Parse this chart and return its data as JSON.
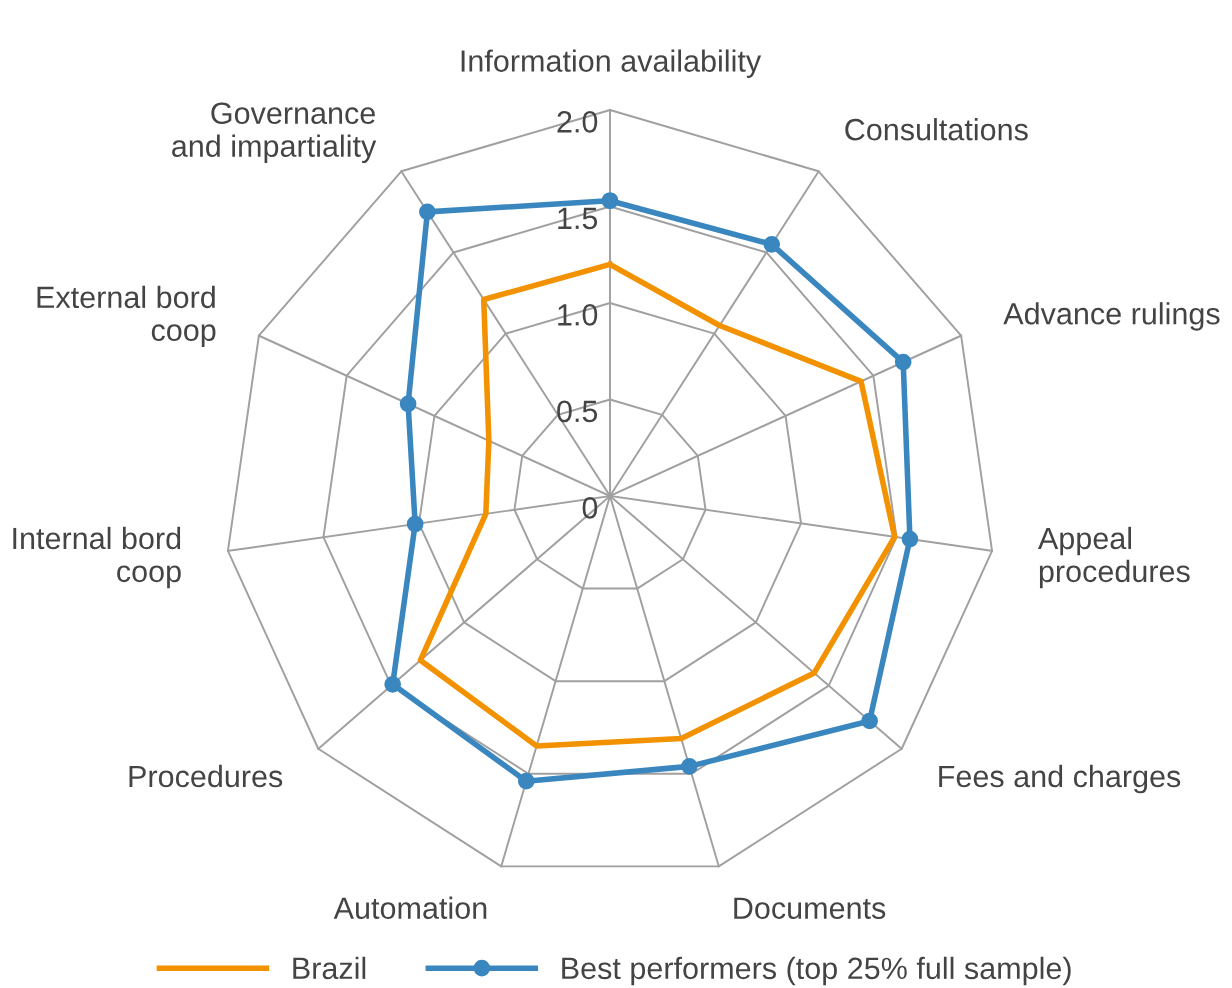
{
  "chart_data": {
    "type": "radar",
    "categories": [
      "Information availability",
      "Consultations",
      "Advance rulings",
      "Appeal\nprocedures",
      "Fees and charges",
      "Documents",
      "Automation",
      "Procedures",
      "Internal bord\ncoop",
      "External bord\ncoop",
      "Governance\nand impartiality"
    ],
    "series": [
      {
        "name": "Brazil",
        "color": "#f39200",
        "marker": "none",
        "values": [
          1.2,
          1.05,
          1.43,
          1.49,
          1.4,
          1.31,
          1.35,
          1.3,
          0.65,
          0.69,
          1.21
        ]
      },
      {
        "name": "Best performers (top 25% full sample)",
        "color": "#3a87c0",
        "marker": "circle",
        "values": [
          1.53,
          1.55,
          1.67,
          1.57,
          1.78,
          1.46,
          1.54,
          1.49,
          1.02,
          1.15,
          1.75
        ]
      }
    ],
    "ylim": [
      0,
      2
    ],
    "yticks": [
      {
        "value": 2,
        "label": "2.0"
      },
      1.5,
      {
        "value": 1,
        "label": "1.0"
      },
      0.5,
      0
    ],
    "grid": true,
    "legend": "bottom"
  }
}
